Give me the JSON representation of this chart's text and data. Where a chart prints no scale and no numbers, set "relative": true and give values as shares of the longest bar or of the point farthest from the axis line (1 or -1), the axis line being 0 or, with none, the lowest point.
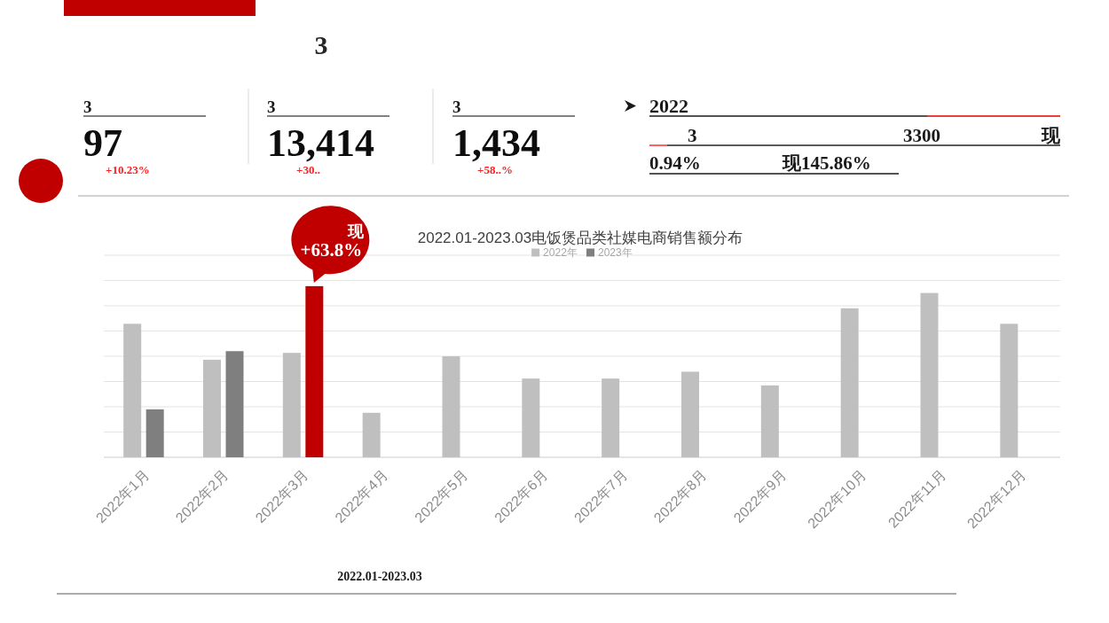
{
  "chart_data": [
    {
      "type": "other",
      "title": "3",
      "annotations": [
        "3",
        "97",
        "+10.23%",
        "3",
        "13,414",
        "+30..",
        "3",
        "1,434",
        "+58..%",
        "2022",
        "3",
        "3300",
        "现",
        "0.94%",
        "现145.86%"
      ]
    },
    {
      "type": "bar",
      "title": "2022.01-2023.03电饭煲品类社媒电商销售额分布",
      "relative": true,
      "grid": true,
      "legend": "top",
      "categories": [
        "2022年1月",
        "2022年2月",
        "2022年3月",
        "2022年4月",
        "2022年5月",
        "2022年6月",
        "2022年7月",
        "2022年8月",
        "2022年9月",
        "2022年10月",
        "2022年11月",
        "2022年12月"
      ],
      "series": [
        {
          "name": "2022年",
          "color": "#bfbfbf",
          "values": [
            0.78,
            0.57,
            0.61,
            0.26,
            0.59,
            0.46,
            0.46,
            0.5,
            0.42,
            0.87,
            0.96,
            0.78
          ]
        },
        {
          "name": "2023年",
          "color": "#7f7f7f",
          "colors": [
            "#7f7f7f",
            "#7f7f7f",
            "#c00000",
            null,
            null,
            null,
            null,
            null,
            null,
            null,
            null,
            null
          ],
          "values": [
            0.28,
            0.62,
            1,
            null,
            null,
            null,
            null,
            null,
            null,
            null,
            null,
            null
          ]
        }
      ],
      "annotations": [
        {
          "text": "现\n+63.8%",
          "x": "2022年3月",
          "y": 1
        },
        "2022.01-2023.03"
      ]
    }
  ]
}
